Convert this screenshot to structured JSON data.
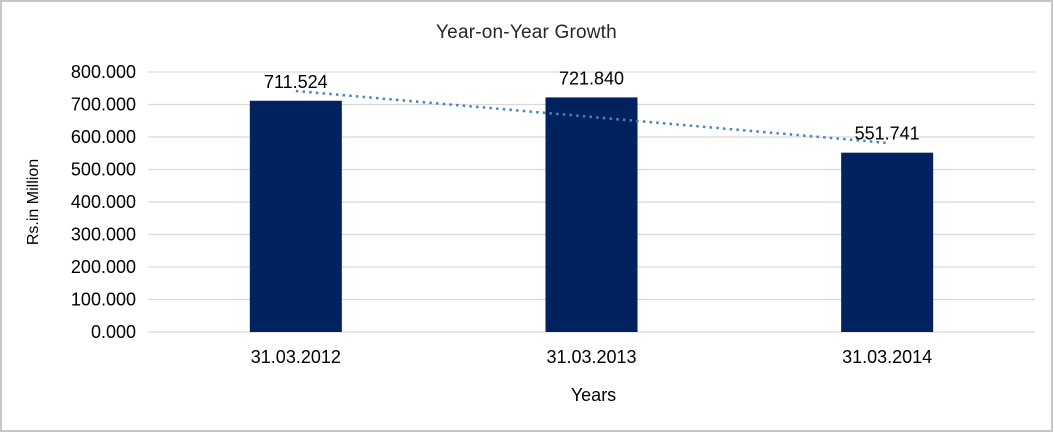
{
  "chart_data": {
    "type": "bar",
    "title": "Year-on-Year Growth",
    "xlabel": "Years",
    "ylabel": "Rs.in Million",
    "categories": [
      "31.03.2012",
      "31.03.2013",
      "31.03.2014"
    ],
    "values": [
      711.524,
      721.84,
      551.741
    ],
    "data_labels": [
      "711.524",
      "721.840",
      "551.741"
    ],
    "ylim": [
      0,
      800
    ],
    "ytick_step": 100,
    "ytick_labels": [
      "0.000",
      "100.000",
      "200.000",
      "300.000",
      "400.000",
      "500.000",
      "600.000",
      "700.000",
      "800.000"
    ],
    "grid": true,
    "legend": "none",
    "trendline": {
      "kind": "linear",
      "style": "dotted"
    },
    "colors": {
      "bar": "#02215f",
      "trendline": "#4f81bd",
      "gridline": "#d9d9d9",
      "text": "#000000",
      "title": "#262626",
      "frame_border": "#c6c6c6",
      "background": "#ffffff"
    }
  }
}
